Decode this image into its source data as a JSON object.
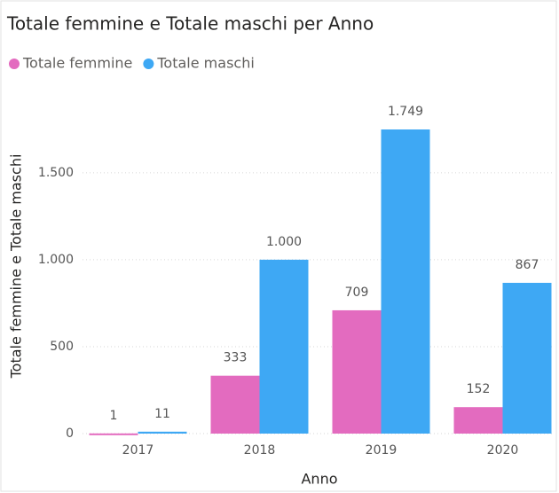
{
  "chart_data": {
    "type": "bar",
    "title": "Totale femmine e Totale maschi per Anno",
    "x_label": "Anno",
    "y_label": "Totale femmine e Totale maschi",
    "categories": [
      "2017",
      "2018",
      "2019",
      "2020"
    ],
    "series": [
      {
        "name": "Totale femmine",
        "color": "#e36bbf",
        "values": [
          1,
          333,
          709,
          152
        ]
      },
      {
        "name": "Totale maschi",
        "color": "#3ea8f4",
        "values": [
          11,
          1000,
          1749,
          867
        ],
        "value_labels": [
          "11",
          "1.000",
          "1.749",
          "867"
        ]
      }
    ],
    "ylim": [
      0,
      1800
    ],
    "yticks": [
      0,
      500,
      {
        "value": 1000,
        "label": "1.000"
      },
      {
        "value": 1500,
        "label": "1.500"
      }
    ],
    "grid": true,
    "legend": "top-left"
  }
}
